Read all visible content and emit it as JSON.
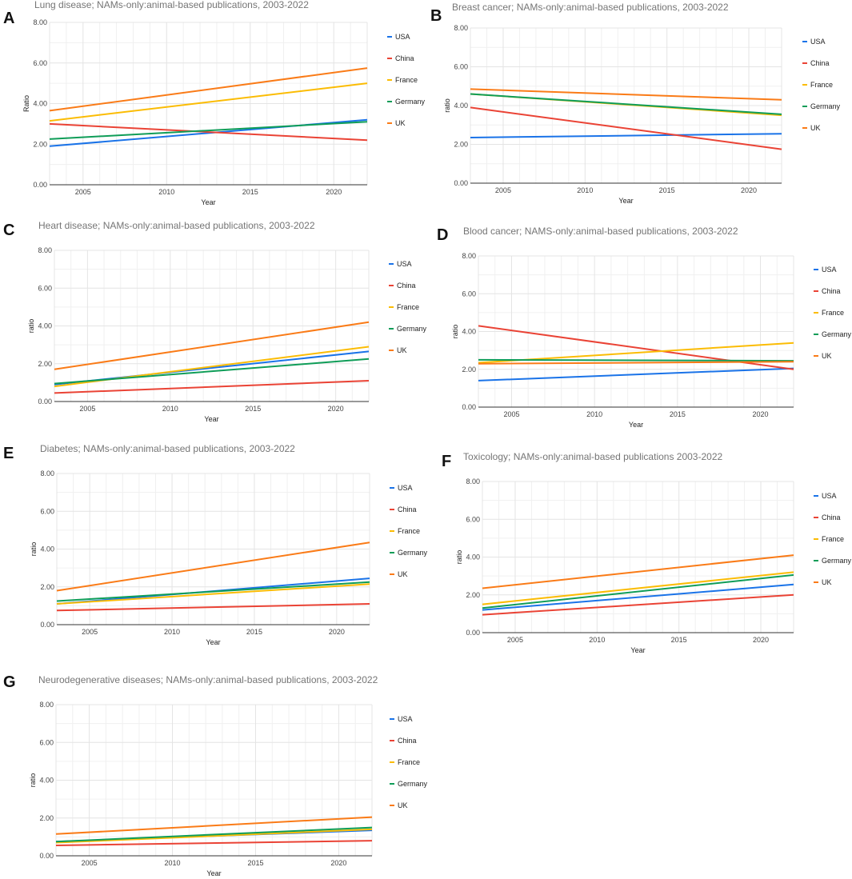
{
  "colors": {
    "USA": "#1a73e8",
    "China": "#ea4335",
    "France": "#fbbc04",
    "Germany": "#0f9d58",
    "UK": "#fa7b17"
  },
  "chart_data": [
    {
      "letter": "A",
      "type": "line",
      "title": "Lung disease; NAMs-only:animal-based publications, 2003-2022",
      "xlabel": "Year",
      "ylabel": "Ratio",
      "xlim": [
        2003,
        2022
      ],
      "ylim": [
        0,
        8
      ],
      "xticks": [
        "2005",
        "2010",
        "2015",
        "2020"
      ],
      "yticks": [
        "0.00",
        "2.00",
        "4.00",
        "6.00",
        "8.00"
      ],
      "series": [
        {
          "name": "USA",
          "x": [
            2003,
            2022
          ],
          "values": [
            1.9,
            3.2
          ]
        },
        {
          "name": "China",
          "x": [
            2003,
            2022
          ],
          "values": [
            3.0,
            2.2
          ]
        },
        {
          "name": "France",
          "x": [
            2003,
            2022
          ],
          "values": [
            3.15,
            5.0
          ]
        },
        {
          "name": "Germany",
          "x": [
            2003,
            2022
          ],
          "values": [
            2.25,
            3.1
          ]
        },
        {
          "name": "UK",
          "x": [
            2003,
            2022
          ],
          "values": [
            3.65,
            5.75
          ]
        }
      ]
    },
    {
      "letter": "B",
      "type": "line",
      "title": "Breast cancer; NAMs-only:animal-based publications, 2003-2022",
      "xlabel": "Year",
      "ylabel": "ratio",
      "xlim": [
        2003,
        2022
      ],
      "ylim": [
        0,
        8
      ],
      "xticks": [
        "2005",
        "2010",
        "2015",
        "2020"
      ],
      "yticks": [
        "0.00",
        "2.00",
        "4.00",
        "6.00",
        "8.00"
      ],
      "series": [
        {
          "name": "USA",
          "x": [
            2003,
            2022
          ],
          "values": [
            2.35,
            2.55
          ]
        },
        {
          "name": "China",
          "x": [
            2003,
            2022
          ],
          "values": [
            3.9,
            1.75
          ]
        },
        {
          "name": "France",
          "x": [
            2003,
            2022
          ],
          "values": [
            4.6,
            3.5
          ]
        },
        {
          "name": "Germany",
          "x": [
            2003,
            2022
          ],
          "values": [
            4.6,
            3.55
          ]
        },
        {
          "name": "UK",
          "x": [
            2003,
            2022
          ],
          "values": [
            4.85,
            4.3
          ]
        }
      ]
    },
    {
      "letter": "C",
      "type": "line",
      "title": "Heart disease; NAMs-only:animal-based publications, 2003-2022",
      "xlabel": "Year",
      "ylabel": "ratio",
      "xlim": [
        2003,
        2022
      ],
      "ylim": [
        0,
        8
      ],
      "xticks": [
        "2005",
        "2010",
        "2015",
        "2020"
      ],
      "yticks": [
        "0.00",
        "2.00",
        "4.00",
        "6.00",
        "8.00"
      ],
      "series": [
        {
          "name": "USA",
          "x": [
            2003,
            2022
          ],
          "values": [
            0.9,
            2.65
          ]
        },
        {
          "name": "China",
          "x": [
            2003,
            2022
          ],
          "values": [
            0.45,
            1.1
          ]
        },
        {
          "name": "France",
          "x": [
            2003,
            2022
          ],
          "values": [
            0.8,
            2.9
          ]
        },
        {
          "name": "Germany",
          "x": [
            2003,
            2022
          ],
          "values": [
            0.95,
            2.25
          ]
        },
        {
          "name": "UK",
          "x": [
            2003,
            2022
          ],
          "values": [
            1.7,
            4.2
          ]
        }
      ]
    },
    {
      "letter": "D",
      "type": "line",
      "title": "Blood cancer; NAMS-only:animal-based publications, 2003-2022",
      "xlabel": "Year",
      "ylabel": "ratio",
      "xlim": [
        2003,
        2022
      ],
      "ylim": [
        0,
        8
      ],
      "xticks": [
        "2005",
        "2010",
        "2015",
        "2020"
      ],
      "yticks": [
        "0.00",
        "2.00",
        "4.00",
        "6.00",
        "8.00"
      ],
      "series": [
        {
          "name": "USA",
          "x": [
            2003,
            2022
          ],
          "values": [
            1.4,
            2.05
          ]
        },
        {
          "name": "China",
          "x": [
            2003,
            2022
          ],
          "values": [
            4.3,
            2.0
          ]
        },
        {
          "name": "France",
          "x": [
            2003,
            2022
          ],
          "values": [
            2.35,
            3.4
          ]
        },
        {
          "name": "Germany",
          "x": [
            2003,
            2022
          ],
          "values": [
            2.5,
            2.45
          ]
        },
        {
          "name": "UK",
          "x": [
            2003,
            2022
          ],
          "values": [
            2.3,
            2.4
          ]
        }
      ]
    },
    {
      "letter": "E",
      "type": "line",
      "title": "Diabetes; NAMs-only:animal-based publications, 2003-2022",
      "xlabel": "Year",
      "ylabel": "ratio",
      "xlim": [
        2003,
        2022
      ],
      "ylim": [
        0,
        8
      ],
      "xticks": [
        "2005",
        "2010",
        "2015",
        "2020"
      ],
      "yticks": [
        "0.00",
        "2.00",
        "4.00",
        "6.00",
        "8.00"
      ],
      "series": [
        {
          "name": "USA",
          "x": [
            2003,
            2022
          ],
          "values": [
            1.1,
            2.45
          ]
        },
        {
          "name": "China",
          "x": [
            2003,
            2022
          ],
          "values": [
            0.75,
            1.1
          ]
        },
        {
          "name": "France",
          "x": [
            2003,
            2022
          ],
          "values": [
            1.1,
            2.15
          ]
        },
        {
          "name": "Germany",
          "x": [
            2003,
            2022
          ],
          "values": [
            1.25,
            2.25
          ]
        },
        {
          "name": "UK",
          "x": [
            2003,
            2022
          ],
          "values": [
            1.8,
            4.35
          ]
        }
      ]
    },
    {
      "letter": "F",
      "type": "line",
      "title": "Toxicology; NAMs-only:animal-based publications 2003-2022",
      "xlabel": "Year",
      "ylabel": "ratio",
      "xlim": [
        2003,
        2022
      ],
      "ylim": [
        0,
        8
      ],
      "xticks": [
        "2005",
        "2010",
        "2015",
        "2020"
      ],
      "yticks": [
        "0.00",
        "2.00",
        "4.00",
        "6.00",
        "8.00"
      ],
      "series": [
        {
          "name": "USA",
          "x": [
            2003,
            2022
          ],
          "values": [
            1.2,
            2.55
          ]
        },
        {
          "name": "China",
          "x": [
            2003,
            2022
          ],
          "values": [
            0.95,
            2.0
          ]
        },
        {
          "name": "France",
          "x": [
            2003,
            2022
          ],
          "values": [
            1.5,
            3.2
          ]
        },
        {
          "name": "Germany",
          "x": [
            2003,
            2022
          ],
          "values": [
            1.3,
            3.05
          ]
        },
        {
          "name": "UK",
          "x": [
            2003,
            2022
          ],
          "values": [
            2.35,
            4.1
          ]
        }
      ]
    },
    {
      "letter": "G",
      "type": "line",
      "title": "Neurodegenerative diseases; NAMs-only:animal-based publications, 2003-2022",
      "xlabel": "Year",
      "ylabel": "ratio",
      "xlim": [
        2003,
        2022
      ],
      "ylim": [
        0,
        8
      ],
      "xticks": [
        "2005",
        "2010",
        "2015",
        "2020"
      ],
      "yticks": [
        "0.00",
        "2.00",
        "4.00",
        "6.00",
        "8.00"
      ],
      "series": [
        {
          "name": "USA",
          "x": [
            2003,
            2022
          ],
          "values": [
            0.75,
            1.35
          ]
        },
        {
          "name": "China",
          "x": [
            2003,
            2022
          ],
          "values": [
            0.55,
            0.8
          ]
        },
        {
          "name": "France",
          "x": [
            2003,
            2022
          ],
          "values": [
            0.7,
            1.4
          ]
        },
        {
          "name": "Germany",
          "x": [
            2003,
            2022
          ],
          "values": [
            0.75,
            1.5
          ]
        },
        {
          "name": "UK",
          "x": [
            2003,
            2022
          ],
          "values": [
            1.15,
            2.05
          ]
        }
      ]
    }
  ]
}
